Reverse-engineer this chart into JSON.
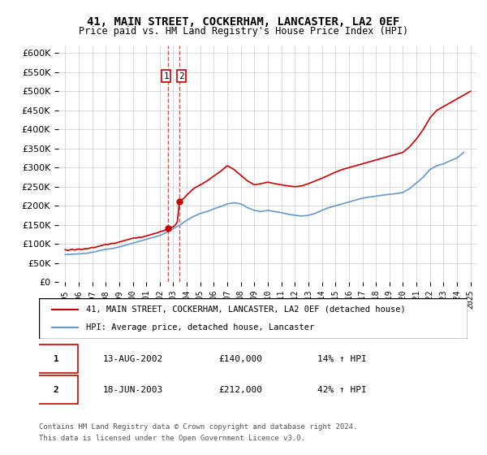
{
  "title": "41, MAIN STREET, COCKERHAM, LANCASTER, LA2 0EF",
  "subtitle": "Price paid vs. HM Land Registry's House Price Index (HPI)",
  "legend_line1": "41, MAIN STREET, COCKERHAM, LANCASTER, LA2 0EF (detached house)",
  "legend_line2": "HPI: Average price, detached house, Lancaster",
  "transaction1_date": "13-AUG-2002",
  "transaction1_price": "£140,000",
  "transaction1_hpi": "14% ↑ HPI",
  "transaction2_date": "18-JUN-2003",
  "transaction2_price": "£212,000",
  "transaction2_hpi": "42% ↑ HPI",
  "footer": "Contains HM Land Registry data © Crown copyright and database right 2024.\nThis data is licensed under the Open Government Licence v3.0.",
  "red_color": "#cc0000",
  "blue_color": "#6699cc",
  "marker_box_color": "#cc0000",
  "ylim": [
    0,
    620000
  ],
  "yticks": [
    0,
    50000,
    100000,
    150000,
    200000,
    250000,
    300000,
    350000,
    400000,
    450000,
    500000,
    550000,
    600000
  ],
  "xlim_start": 1994.5,
  "xlim_end": 2025.5,
  "transaction1_x": 2002.62,
  "transaction1_y": 140000,
  "transaction2_x": 2003.46,
  "transaction2_y": 212000,
  "red_x": [
    1995.0,
    1995.1,
    1995.2,
    1995.3,
    1995.4,
    1995.5,
    1995.6,
    1995.7,
    1995.8,
    1995.9,
    1996.0,
    1996.1,
    1996.2,
    1996.3,
    1996.4,
    1996.5,
    1996.6,
    1996.7,
    1996.8,
    1996.9,
    1997.0,
    1997.1,
    1997.2,
    1997.3,
    1997.4,
    1997.5,
    1997.6,
    1997.7,
    1997.8,
    1997.9,
    1998.0,
    1998.1,
    1998.2,
    1998.3,
    1998.4,
    1998.5,
    1998.6,
    1998.7,
    1998.8,
    1998.9,
    1999.0,
    1999.1,
    1999.2,
    1999.3,
    1999.4,
    1999.5,
    1999.6,
    1999.7,
    1999.8,
    1999.9,
    2000.0,
    2000.1,
    2000.2,
    2000.3,
    2000.4,
    2000.5,
    2000.6,
    2000.7,
    2000.8,
    2000.9,
    2001.0,
    2001.1,
    2001.2,
    2001.3,
    2001.4,
    2001.5,
    2001.6,
    2001.7,
    2001.8,
    2001.9,
    2002.0,
    2002.1,
    2002.2,
    2002.3,
    2002.4,
    2002.5,
    2002.62,
    2002.63,
    2003.0,
    2003.1,
    2003.2,
    2003.3,
    2003.46,
    2003.47,
    2003.8,
    2004.0,
    2004.5,
    2005.0,
    2005.5,
    2006.0,
    2006.5,
    2007.0,
    2007.5,
    2008.0,
    2008.5,
    2009.0,
    2009.5,
    2010.0,
    2010.5,
    2011.0,
    2011.5,
    2012.0,
    2012.5,
    2013.0,
    2013.5,
    2014.0,
    2014.5,
    2015.0,
    2015.5,
    2016.0,
    2016.5,
    2017.0,
    2017.5,
    2018.0,
    2018.5,
    2019.0,
    2019.5,
    2020.0,
    2020.5,
    2021.0,
    2021.5,
    2022.0,
    2022.5,
    2023.0,
    2023.5,
    2024.0,
    2024.5,
    2025.0
  ],
  "red_y": [
    85000,
    84000,
    83000,
    84000,
    85000,
    86000,
    85000,
    84000,
    85000,
    86000,
    87000,
    86000,
    85000,
    86000,
    87000,
    88000,
    87000,
    88000,
    89000,
    90000,
    91000,
    90000,
    91000,
    92000,
    93000,
    94000,
    95000,
    96000,
    97000,
    98000,
    99000,
    98000,
    99000,
    100000,
    101000,
    102000,
    101000,
    102000,
    103000,
    104000,
    105000,
    106000,
    107000,
    108000,
    109000,
    110000,
    111000,
    112000,
    113000,
    114000,
    115000,
    116000,
    115000,
    116000,
    117000,
    118000,
    117000,
    118000,
    119000,
    120000,
    121000,
    122000,
    123000,
    124000,
    125000,
    126000,
    127000,
    128000,
    129000,
    130000,
    132000,
    133000,
    134000,
    135000,
    136000,
    137000,
    140000,
    140000,
    145000,
    148000,
    152000,
    158000,
    212000,
    212000,
    220000,
    228000,
    245000,
    255000,
    265000,
    278000,
    290000,
    305000,
    295000,
    280000,
    265000,
    255000,
    258000,
    262000,
    258000,
    255000,
    252000,
    250000,
    252000,
    258000,
    265000,
    272000,
    280000,
    288000,
    295000,
    300000,
    305000,
    310000,
    315000,
    320000,
    325000,
    330000,
    335000,
    340000,
    355000,
    375000,
    400000,
    430000,
    450000,
    460000,
    470000,
    480000,
    490000,
    500000
  ],
  "blue_x": [
    1995.0,
    1995.5,
    1996.0,
    1996.5,
    1997.0,
    1997.5,
    1998.0,
    1998.5,
    1999.0,
    1999.5,
    2000.0,
    2000.5,
    2001.0,
    2001.5,
    2002.0,
    2002.5,
    2003.0,
    2003.5,
    2004.0,
    2004.5,
    2005.0,
    2005.5,
    2006.0,
    2006.5,
    2007.0,
    2007.5,
    2008.0,
    2008.5,
    2009.0,
    2009.5,
    2010.0,
    2010.5,
    2011.0,
    2011.5,
    2012.0,
    2012.5,
    2013.0,
    2013.5,
    2014.0,
    2014.5,
    2015.0,
    2015.5,
    2016.0,
    2016.5,
    2017.0,
    2017.5,
    2018.0,
    2018.5,
    2019.0,
    2019.5,
    2020.0,
    2020.5,
    2021.0,
    2021.5,
    2022.0,
    2022.5,
    2023.0,
    2023.5,
    2024.0,
    2024.5
  ],
  "blue_y": [
    72000,
    73000,
    74000,
    75000,
    78000,
    82000,
    86000,
    88000,
    92000,
    97000,
    102000,
    107000,
    112000,
    117000,
    122000,
    130000,
    140000,
    150000,
    162000,
    172000,
    180000,
    185000,
    192000,
    198000,
    205000,
    208000,
    205000,
    195000,
    188000,
    185000,
    188000,
    185000,
    182000,
    178000,
    175000,
    173000,
    175000,
    180000,
    188000,
    195000,
    200000,
    205000,
    210000,
    215000,
    220000,
    223000,
    225000,
    228000,
    230000,
    232000,
    235000,
    245000,
    260000,
    275000,
    295000,
    305000,
    310000,
    318000,
    325000,
    340000
  ]
}
